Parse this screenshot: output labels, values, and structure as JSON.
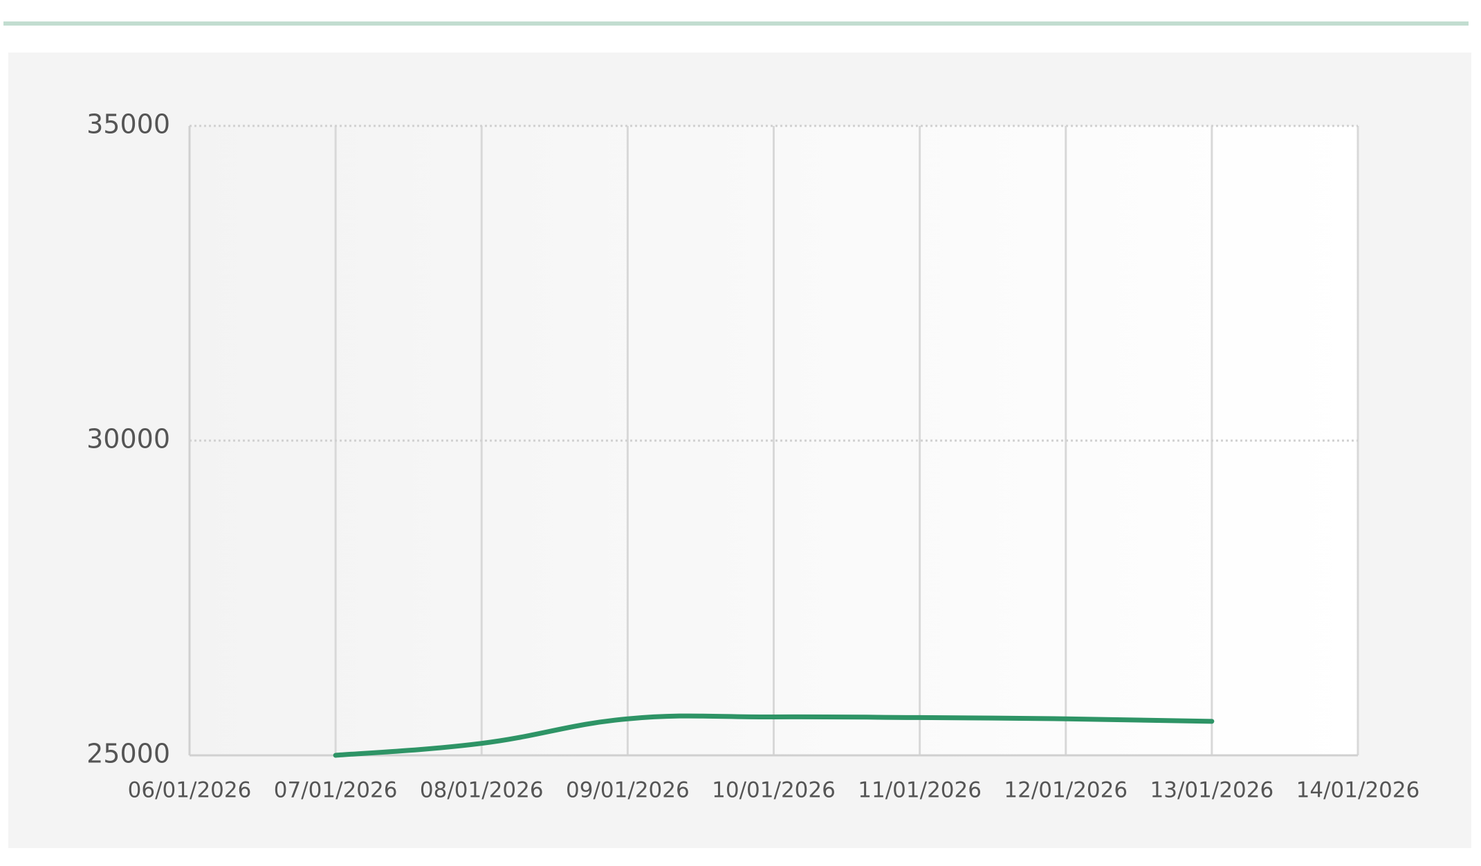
{
  "chart_data": {
    "type": "line",
    "x": [
      "07/01/2026",
      "08/01/2026",
      "09/01/2026",
      "10/01/2026",
      "11/01/2026",
      "12/01/2026",
      "13/01/2026"
    ],
    "series": [
      {
        "color": "#2e9466",
        "values": [
          25000,
          25190,
          25580,
          25610,
          25600,
          25580,
          25540
        ]
      }
    ],
    "xlim": [
      "06/01/2026",
      "14/01/2026"
    ],
    "xticks": [
      "06/01/2026",
      "07/01/2026",
      "08/01/2026",
      "09/01/2026",
      "10/01/2026",
      "11/01/2026",
      "12/01/2026",
      "13/01/2026",
      "14/01/2026"
    ],
    "ylim": [
      25000,
      35000
    ],
    "yticks": [
      25000,
      30000,
      35000
    ],
    "grid": true
  }
}
